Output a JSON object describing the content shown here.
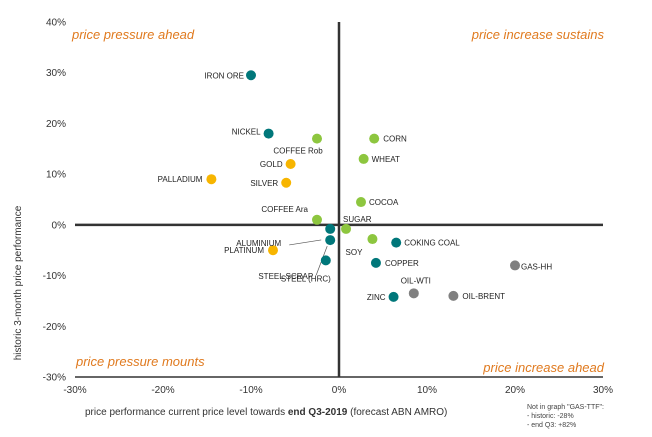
{
  "chart_data": {
    "type": "scatter",
    "xlabel_parts": [
      {
        "text": "price performance current price level towards ",
        "bold": false
      },
      {
        "text": "end Q3-2019",
        "bold": true
      },
      {
        "text": " (forecast ABN AMRO)",
        "bold": false
      }
    ],
    "ylabel": "historic 3-month price performance",
    "xlim": [
      -30,
      30
    ],
    "ylim": [
      -30,
      40
    ],
    "x_ticks": [
      -30,
      -20,
      -10,
      0,
      10,
      20,
      30
    ],
    "y_ticks": [
      -30,
      -20,
      -10,
      0,
      10,
      20,
      30,
      40
    ],
    "tick_suffix": "%",
    "grid": false,
    "quadrant_labels": {
      "top_left": "price pressure ahead",
      "top_right": "price increase sustains",
      "bottom_left": "price pressure mounts",
      "bottom_right": "price increase ahead"
    },
    "colors": {
      "metals": "#00777A",
      "agri": "#8DC63F",
      "precious": "#F7B500",
      "energy": "#808080",
      "axis": "#333333",
      "quadrant": "#E07A1F"
    },
    "points": [
      {
        "name": "IRON ORE",
        "x": -10,
        "y": 29.5,
        "group": "metals"
      },
      {
        "name": "NICKEL",
        "x": -8,
        "y": 18,
        "group": "metals"
      },
      {
        "name": "COFFEE Rob",
        "x": -2.5,
        "y": 17,
        "group": "agri"
      },
      {
        "name": "CORN",
        "x": 4,
        "y": 17,
        "group": "agri"
      },
      {
        "name": "WHEAT",
        "x": 2.8,
        "y": 13,
        "group": "agri"
      },
      {
        "name": "GOLD",
        "x": -5.5,
        "y": 12,
        "group": "precious"
      },
      {
        "name": "SILVER",
        "x": -6,
        "y": 8.3,
        "group": "precious"
      },
      {
        "name": "PALLADIUM",
        "x": -14.5,
        "y": 9,
        "group": "precious"
      },
      {
        "name": "COCOA",
        "x": 2.5,
        "y": 4.5,
        "group": "agri"
      },
      {
        "name": "COFFEE Ara",
        "x": -2.5,
        "y": 1,
        "group": "agri"
      },
      {
        "name": "SUGAR",
        "x": 0.8,
        "y": -0.8,
        "group": "agri"
      },
      {
        "name": "ALUMINIUM",
        "x": -1,
        "y": -0.8,
        "group": "metals"
      },
      {
        "name": "SOY",
        "x": 3.8,
        "y": -2.8,
        "group": "agri"
      },
      {
        "name": "COKING COAL",
        "x": 6.5,
        "y": -3.5,
        "group": "metals"
      },
      {
        "name": "PLATINUM",
        "x": -7.5,
        "y": -5,
        "group": "precious"
      },
      {
        "name": "STEEL SCRAP",
        "x": -1,
        "y": -3,
        "group": "metals"
      },
      {
        "name": "STEEL (HRC)",
        "x": -1.5,
        "y": -7,
        "group": "metals"
      },
      {
        "name": "COPPER",
        "x": 4.2,
        "y": -7.5,
        "group": "metals"
      },
      {
        "name": "GAS-HH",
        "x": 20,
        "y": -8,
        "group": "energy"
      },
      {
        "name": "OIL-WTI",
        "x": 8.5,
        "y": -13.5,
        "group": "energy"
      },
      {
        "name": "ZINC",
        "x": 6.2,
        "y": -14.2,
        "group": "metals"
      },
      {
        "name": "OIL-BRENT",
        "x": 13,
        "y": -14,
        "group": "energy"
      }
    ]
  },
  "note": {
    "line1": "Not in graph \"GAS-TTF\":",
    "line2": "- historic: -28%",
    "line3": "- end Q3: +82%"
  }
}
